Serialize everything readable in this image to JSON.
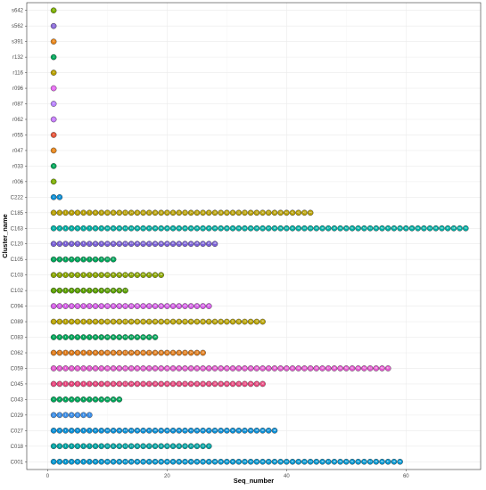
{
  "chart_data": {
    "type": "scatter",
    "xlabel": "Seq_number",
    "ylabel": "Cluster_name",
    "xlim": [
      -3.5,
      72.5
    ],
    "x_ticks": [
      0,
      20,
      40,
      60
    ],
    "grid": true,
    "legend": "none",
    "categories": [
      "s642",
      "s562",
      "s391",
      "r132",
      "r116",
      "r096",
      "r087",
      "r062",
      "r055",
      "r047",
      "r033",
      "r006",
      "C222",
      "C185",
      "C163",
      "C120",
      "C105",
      "C103",
      "C102",
      "C094",
      "C089",
      "C083",
      "C062",
      "C059",
      "C045",
      "C043",
      "C029",
      "C027",
      "C018",
      "C001"
    ],
    "series": [
      {
        "cluster": "s642",
        "count": 1,
        "color": "#7cae00"
      },
      {
        "cluster": "s562",
        "count": 1,
        "color": "#8b6bd9"
      },
      {
        "cluster": "s391",
        "count": 1,
        "color": "#e7861b"
      },
      {
        "cluster": "r132",
        "count": 1,
        "color": "#00a65a"
      },
      {
        "cluster": "r116",
        "count": 1,
        "color": "#b79f00"
      },
      {
        "cluster": "r096",
        "count": 1,
        "color": "#e76bf3"
      },
      {
        "cluster": "r087",
        "count": 1,
        "color": "#b983ff"
      },
      {
        "cluster": "r062",
        "count": 1,
        "color": "#c77cff"
      },
      {
        "cluster": "r055",
        "count": 1,
        "color": "#e6553a"
      },
      {
        "cluster": "r047",
        "count": 1,
        "color": "#e7861b"
      },
      {
        "cluster": "r033",
        "count": 1,
        "color": "#00a65a"
      },
      {
        "cluster": "r006",
        "count": 1,
        "color": "#7cae00"
      },
      {
        "cluster": "C222",
        "count": 2,
        "color": "#0c8fd6"
      },
      {
        "cluster": "C185",
        "count": 44,
        "color": "#b79f00"
      },
      {
        "cluster": "C163",
        "count": 70,
        "color": "#00aea4"
      },
      {
        "cluster": "C120",
        "count": 28,
        "color": "#7a60d6"
      },
      {
        "cluster": "C105",
        "count": 11,
        "color": "#00a65a"
      },
      {
        "cluster": "C103",
        "count": 19,
        "color": "#8aa600"
      },
      {
        "cluster": "C102",
        "count": 13,
        "color": "#5aa000"
      },
      {
        "cluster": "C094",
        "count": 27,
        "color": "#d45ee6"
      },
      {
        "cluster": "C089",
        "count": 36,
        "color": "#b9a300"
      },
      {
        "cluster": "C083",
        "count": 18,
        "color": "#00a65a"
      },
      {
        "cluster": "C062",
        "count": 26,
        "color": "#e07b19"
      },
      {
        "cluster": "C059",
        "count": 57,
        "color": "#e45ad0"
      },
      {
        "cluster": "C045",
        "count": 36,
        "color": "#e9447c"
      },
      {
        "cluster": "C043",
        "count": 12,
        "color": "#00a65a"
      },
      {
        "cluster": "C029",
        "count": 7,
        "color": "#3d8fe8"
      },
      {
        "cluster": "C027",
        "count": 38,
        "color": "#0c8fd6"
      },
      {
        "cluster": "C018",
        "count": 27,
        "color": "#00a3a3"
      },
      {
        "cluster": "C001",
        "count": 59,
        "color": "#0596d0"
      }
    ]
  }
}
